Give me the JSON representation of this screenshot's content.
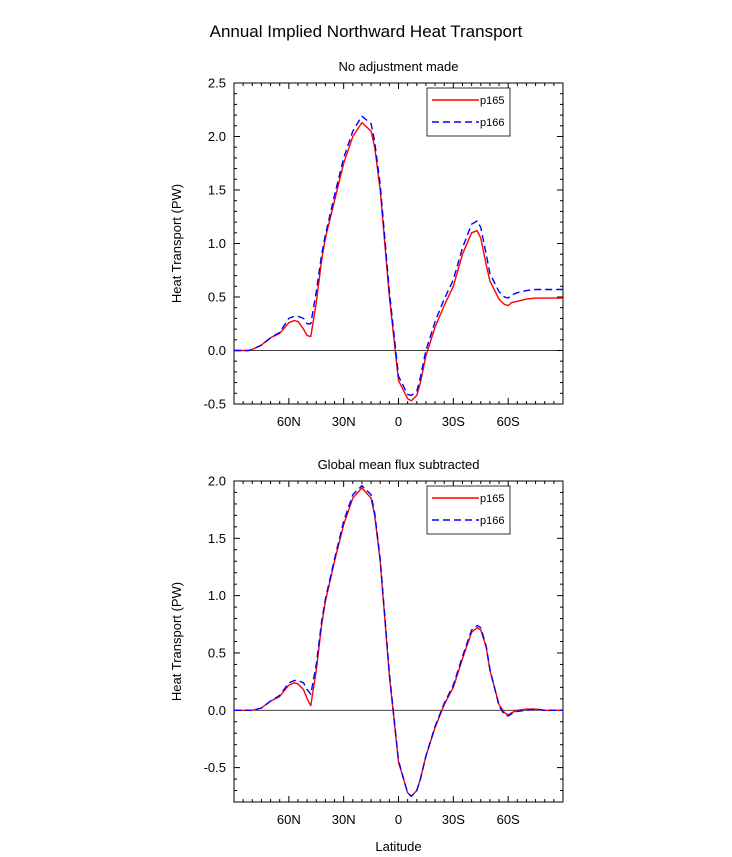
{
  "figure_title": "Annual Implied Northward Heat Transport",
  "chart_data": [
    {
      "type": "line",
      "title": "No adjustment made",
      "xlabel": "",
      "ylabel": "Heat Transport (PW)",
      "xlim": [
        90,
        -90
      ],
      "ylim": [
        -0.5,
        2.5
      ],
      "yticks": [
        -0.5,
        0.0,
        0.5,
        1.0,
        1.5,
        2.0,
        2.5
      ],
      "ytick_labels": [
        "-0.5",
        "0.0",
        "0.5",
        "1.0",
        "1.5",
        "2.0",
        "2.5"
      ],
      "xticks": [
        60,
        30,
        0,
        -30,
        -60
      ],
      "xtick_labels": [
        "60N",
        "30N",
        "0",
        "30S",
        "60S"
      ],
      "zero_line": true,
      "legend": "top-right",
      "series": [
        {
          "name": "p165",
          "color": "#ff0000",
          "dash": "solid",
          "x": [
            90,
            85,
            82,
            80,
            75,
            70,
            65,
            60,
            57,
            55,
            52,
            50,
            48,
            45,
            42,
            40,
            35,
            30,
            25,
            20,
            15,
            13,
            10,
            5,
            0,
            -5,
            -7,
            -10,
            -12,
            -15,
            -20,
            -25,
            -30,
            -35,
            -40,
            -43,
            -45,
            -48,
            -50,
            -55,
            -58,
            -60,
            -62,
            -65,
            -70,
            -75,
            -80,
            -85,
            -90
          ],
          "y": [
            0.0,
            0.0,
            0.0,
            0.01,
            0.05,
            0.12,
            0.16,
            0.26,
            0.28,
            0.27,
            0.2,
            0.14,
            0.13,
            0.45,
            0.85,
            1.05,
            1.4,
            1.75,
            2.0,
            2.13,
            2.05,
            1.9,
            1.5,
            0.5,
            -0.28,
            -0.45,
            -0.47,
            -0.42,
            -0.3,
            -0.05,
            0.22,
            0.42,
            0.6,
            0.9,
            1.1,
            1.12,
            1.05,
            0.8,
            0.65,
            0.48,
            0.43,
            0.42,
            0.45,
            0.46,
            0.48,
            0.49,
            0.49,
            0.49,
            0.49
          ]
        },
        {
          "name": "p166",
          "color": "#0000ff",
          "dash": "dashed",
          "x": [
            90,
            85,
            82,
            80,
            75,
            70,
            65,
            60,
            57,
            55,
            52,
            50,
            48,
            45,
            42,
            40,
            35,
            30,
            25,
            20,
            15,
            13,
            10,
            5,
            0,
            -5,
            -7,
            -10,
            -12,
            -15,
            -20,
            -25,
            -30,
            -35,
            -40,
            -43,
            -45,
            -48,
            -50,
            -55,
            -58,
            -60,
            -62,
            -65,
            -70,
            -75,
            -80,
            -85,
            -90
          ],
          "y": [
            0.0,
            0.0,
            0.0,
            0.01,
            0.05,
            0.12,
            0.17,
            0.3,
            0.32,
            0.32,
            0.3,
            0.25,
            0.25,
            0.55,
            0.9,
            1.08,
            1.45,
            1.8,
            2.05,
            2.19,
            2.12,
            1.95,
            1.55,
            0.55,
            -0.24,
            -0.41,
            -0.42,
            -0.38,
            -0.25,
            0.0,
            0.27,
            0.48,
            0.66,
            0.96,
            1.18,
            1.21,
            1.15,
            0.9,
            0.72,
            0.55,
            0.5,
            0.49,
            0.52,
            0.54,
            0.56,
            0.57,
            0.57,
            0.57,
            0.57
          ]
        }
      ]
    },
    {
      "type": "line",
      "title": "Global mean flux subtracted",
      "xlabel": "Latitude",
      "ylabel": "Heat Transport (PW)",
      "xlim": [
        90,
        -90
      ],
      "ylim": [
        -0.8,
        2.0
      ],
      "yticks": [
        -0.5,
        0.0,
        0.5,
        1.0,
        1.5,
        2.0
      ],
      "ytick_labels": [
        "-0.5",
        "0.0",
        "0.5",
        "1.0",
        "1.5",
        "2.0"
      ],
      "xticks": [
        60,
        30,
        0,
        -30,
        -60
      ],
      "xtick_labels": [
        "60N",
        "30N",
        "0",
        "30S",
        "60S"
      ],
      "zero_line": true,
      "legend": "top-right",
      "series": [
        {
          "name": "p165",
          "color": "#ff0000",
          "dash": "solid",
          "x": [
            90,
            85,
            82,
            80,
            75,
            70,
            65,
            60,
            57,
            55,
            52,
            50,
            48,
            45,
            42,
            40,
            35,
            30,
            25,
            20,
            15,
            13,
            10,
            5,
            0,
            -5,
            -7,
            -10,
            -12,
            -15,
            -20,
            -25,
            -30,
            -35,
            -40,
            -43,
            -45,
            -48,
            -50,
            -55,
            -58,
            -60,
            -62,
            -65,
            -70,
            -75,
            -80,
            -85,
            -90
          ],
          "y": [
            0.0,
            0.0,
            0.0,
            0.0,
            0.02,
            0.08,
            0.12,
            0.22,
            0.24,
            0.23,
            0.18,
            0.1,
            0.04,
            0.35,
            0.75,
            0.95,
            1.3,
            1.62,
            1.85,
            1.94,
            1.85,
            1.7,
            1.3,
            0.3,
            -0.45,
            -0.72,
            -0.75,
            -0.7,
            -0.6,
            -0.4,
            -0.15,
            0.05,
            0.2,
            0.45,
            0.68,
            0.72,
            0.7,
            0.55,
            0.35,
            0.05,
            -0.02,
            -0.04,
            -0.02,
            0.0,
            0.01,
            0.01,
            0.0,
            0.0,
            0.0
          ]
        },
        {
          "name": "p166",
          "color": "#0000ff",
          "dash": "dashed",
          "x": [
            90,
            85,
            82,
            80,
            75,
            70,
            65,
            60,
            57,
            55,
            52,
            50,
            48,
            45,
            42,
            40,
            35,
            30,
            25,
            20,
            15,
            13,
            10,
            5,
            0,
            -5,
            -7,
            -10,
            -12,
            -15,
            -20,
            -25,
            -30,
            -35,
            -40,
            -43,
            -45,
            -48,
            -50,
            -55,
            -58,
            -60,
            -62,
            -65,
            -70,
            -75,
            -80,
            -85,
            -90
          ],
          "y": [
            0.0,
            0.0,
            0.0,
            0.0,
            0.02,
            0.08,
            0.13,
            0.24,
            0.26,
            0.26,
            0.24,
            0.18,
            0.14,
            0.4,
            0.78,
            0.97,
            1.32,
            1.65,
            1.88,
            1.96,
            1.88,
            1.72,
            1.32,
            0.32,
            -0.44,
            -0.72,
            -0.75,
            -0.7,
            -0.6,
            -0.4,
            -0.14,
            0.06,
            0.22,
            0.47,
            0.7,
            0.74,
            0.72,
            0.56,
            0.36,
            0.04,
            -0.04,
            -0.05,
            -0.03,
            -0.01,
            0.0,
            0.01,
            0.0,
            0.0,
            0.0
          ]
        }
      ]
    }
  ]
}
